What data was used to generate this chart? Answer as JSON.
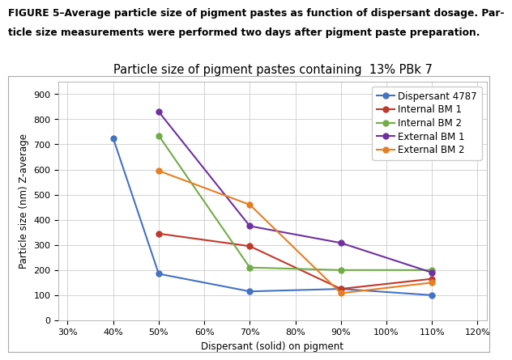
{
  "title": "Particle size of pigment pastes containing  13% PBk 7",
  "caption_line1": "FIGURE 5–Average particle size of pigment pastes as function of dispersant dosage. Par-",
  "caption_line2": "ticle size measurements were performed two days after pigment paste preparation.",
  "xlabel": "Dispersant (solid) on pigment",
  "ylabel": "Particle size (nm) Z-average",
  "xlim": [
    0.28,
    1.22
  ],
  "ylim": [
    0,
    950
  ],
  "yticks": [
    0,
    100,
    200,
    300,
    400,
    500,
    600,
    700,
    800,
    900
  ],
  "xticks": [
    0.3,
    0.4,
    0.5,
    0.6,
    0.7,
    0.8,
    0.9,
    1.0,
    1.1,
    1.2
  ],
  "xtick_labels": [
    "30%",
    "40%",
    "50%",
    "60%",
    "70%",
    "80%",
    "90%",
    "100%",
    "110%",
    "120%"
  ],
  "series": [
    {
      "label": "Dispersant 4787",
      "color": "#4472C4",
      "x": [
        0.4,
        0.5,
        0.7,
        0.9,
        1.1
      ],
      "y": [
        725,
        185,
        115,
        125,
        100
      ]
    },
    {
      "label": "Internal BM 1",
      "color": "#C0392B",
      "x": [
        0.5,
        0.7,
        0.9,
        1.1
      ],
      "y": [
        345,
        295,
        125,
        165
      ]
    },
    {
      "label": "Internal BM 2",
      "color": "#70AD47",
      "x": [
        0.5,
        0.7,
        0.9,
        1.1
      ],
      "y": [
        735,
        210,
        200,
        200
      ]
    },
    {
      "label": "External BM 1",
      "color": "#7030A0",
      "x": [
        0.5,
        0.7,
        0.9,
        1.1
      ],
      "y": [
        830,
        375,
        308,
        190
      ]
    },
    {
      "label": "External BM 2",
      "color": "#E67E22",
      "x": [
        0.5,
        0.7,
        0.9,
        1.1
      ],
      "y": [
        595,
        460,
        108,
        150
      ]
    }
  ],
  "background_color": "#FFFFFF",
  "grid_color": "#CCCCCC",
  "title_fontsize": 10.5,
  "caption_fontsize": 8.8,
  "axis_fontsize": 8.5,
  "legend_fontsize": 8.5,
  "tick_fontsize": 8.0
}
